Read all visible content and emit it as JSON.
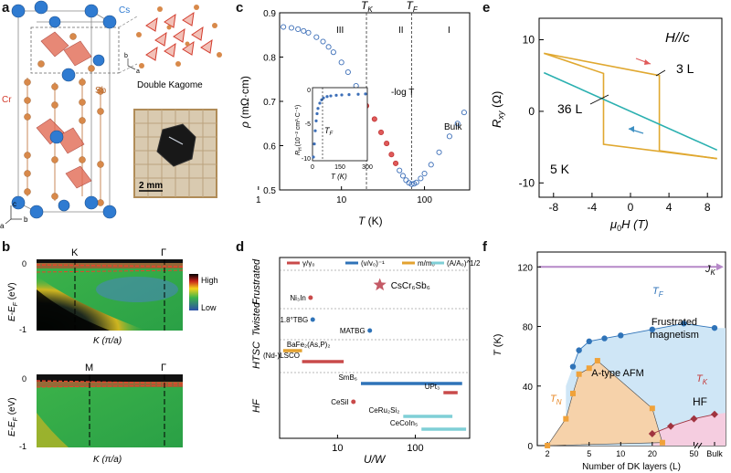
{
  "labels": {
    "a": "a",
    "b": "b",
    "c": "c",
    "d": "d",
    "e": "e",
    "f": "f"
  },
  "panel_a": {
    "atoms": [
      "Cs",
      "Cr",
      "Sb"
    ],
    "caption": "Double Kagome",
    "scale": "2 mm",
    "axes": {
      "a": "a",
      "b": "b",
      "c": "c"
    },
    "colors": {
      "cs": "#2f7bd1",
      "cr": "#d33b2c",
      "sb": "#d8894a"
    }
  },
  "panel_b": {
    "top": {
      "ylabel": "E-E",
      "ysub": "F",
      "yunit": " (eV)",
      "xlabel": "K (π/a)",
      "k_markers": [
        "K",
        "Γ"
      ],
      "yticks": [
        "0",
        "-1"
      ]
    },
    "bottom": {
      "ylabel": "E-E",
      "ysub": "F",
      "yunit": " (eV)",
      "xlabel": "K (π/a)",
      "k_markers": [
        "M",
        "Γ"
      ],
      "yticks": [
        "0",
        "-1"
      ]
    },
    "colorbar": {
      "high": "High",
      "low": "Low"
    }
  },
  "panel_c": {
    "ylabel_pre": "ρ",
    "ylabel_unit": "(mΩ·cm)",
    "xlabel": "T (K)",
    "marker_TK": "T",
    "marker_TK_sub": "K",
    "marker_TF": "T",
    "marker_TF_sub": "F",
    "regions": [
      "III",
      "II",
      "I"
    ],
    "annot_log": "-log T",
    "annot_bulk": "Bulk",
    "inset": {
      "ylabel": "R",
      "ylabel_sub": "H",
      "ylabel_unit": "(10⁻² cm³·C⁻¹)",
      "xlabel": "T (K)",
      "marker": "T",
      "marker_sub": "F",
      "xticks": [
        "0",
        "150",
        "300"
      ],
      "yticks": [
        "0",
        "-5",
        "-10"
      ]
    },
    "chart_data": {
      "type": "scatter",
      "x_scale": "log",
      "xlim": [
        1.8,
        350
      ],
      "ylim": [
        0.5,
        0.9
      ],
      "xticks": [
        "1",
        "10",
        "100"
      ],
      "yticks": [
        "0.5",
        "0.6",
        "0.7",
        "0.8",
        "0.9"
      ],
      "T_K": 20,
      "T_F": 70,
      "series": [
        {
          "x": [
            2,
            2.5,
            3,
            3.5,
            4,
            5,
            6,
            7,
            8,
            10,
            12,
            15,
            18,
            20,
            25,
            30,
            35,
            40,
            45,
            50,
            55,
            60,
            65,
            70,
            75,
            80,
            90,
            100,
            120,
            150,
            200,
            250,
            300
          ],
          "y": [
            0.868,
            0.866,
            0.863,
            0.859,
            0.855,
            0.845,
            0.835,
            0.823,
            0.811,
            0.788,
            0.766,
            0.735,
            0.705,
            0.69,
            0.66,
            0.63,
            0.605,
            0.58,
            0.56,
            0.544,
            0.532,
            0.522,
            0.516,
            0.513,
            0.514,
            0.517,
            0.526,
            0.537,
            0.557,
            0.585,
            0.621,
            0.65,
            0.675
          ]
        }
      ]
    }
  },
  "panel_d": {
    "legend": [
      "γ/γ₀",
      "(v/v₀)⁻¹",
      "m/m₀",
      "(A/A₀)^1/2"
    ],
    "legend_colors": [
      "#c94a4a",
      "#2f73b8",
      "#e3a230",
      "#7fcfd6"
    ],
    "groups": [
      "Frustrated",
      "Twisted",
      "HTSC",
      "HF"
    ],
    "xlabel": "U/W",
    "xticks": [
      "10",
      "100"
    ],
    "star_label": "CsCr₆Sb₆",
    "chart_data": {
      "type": "bar",
      "x_scale": "log",
      "xlim": [
        1.8,
        500
      ],
      "entries": [
        {
          "name": "CsCr₆Sb₆",
          "kind": "star",
          "x": 35
        },
        {
          "name": "Ni₃In",
          "kind": "point",
          "x": 4.5
        },
        {
          "name": "1.8°TBG",
          "kind": "point",
          "x": 4.8
        },
        {
          "name": "MATBG",
          "kind": "point",
          "x": 26
        },
        {
          "name": "BaFe₂(As,P)₂",
          "kind": "range",
          "x": [
            2,
            3.5
          ]
        },
        {
          "name": "(Nd-)LSCO",
          "kind": "range",
          "x": [
            3.5,
            12
          ]
        },
        {
          "name": "SmB₆",
          "kind": "range",
          "x": [
            20,
            400
          ]
        },
        {
          "name": "UPt₃",
          "kind": "range",
          "x": [
            230,
            350
          ]
        },
        {
          "name": "CeSiI",
          "kind": "point",
          "x": 16
        },
        {
          "name": "CeRu₂Si₂",
          "kind": "range",
          "x": [
            70,
            300
          ]
        },
        {
          "name": "CeCoIn₅",
          "kind": "range",
          "x": [
            120,
            450
          ]
        }
      ]
    }
  },
  "panel_e": {
    "title": "H//c",
    "ylabel": "R",
    "ylabel_sub": "xy",
    "ylabel_unit": " (Ω)",
    "xlabel_pre": "μ",
    "xlabel_sub": "0",
    "xlabel_post": "H (T)",
    "temp": "5 K",
    "labels": [
      "3 L",
      "36 L"
    ],
    "chart_data": {
      "type": "line",
      "xlim": [
        -9.5,
        9.5
      ],
      "ylim": [
        -12,
        13
      ],
      "xticks": [
        "-8",
        "-4",
        "0",
        "4",
        "8"
      ],
      "yticks": [
        "-10",
        "0",
        "10"
      ],
      "series": [
        {
          "name": "3 L",
          "up": [
            [
              -9,
              8.1
            ],
            [
              3,
              5
            ],
            [
              3,
              -5.5
            ],
            [
              9,
              -6.6
            ]
          ],
          "down": [
            [
              9,
              -6.6
            ],
            [
              -2.8,
              -4.6
            ],
            [
              -2.8,
              5.3
            ],
            [
              -9,
              8.1
            ]
          ]
        },
        {
          "name": "36 L",
          "values": [
            [
              -9,
              5.4
            ],
            [
              9,
              -5.4
            ]
          ]
        }
      ]
    }
  },
  "panel_f": {
    "ylabel": "T (K)",
    "xlabel": "Number of DK layers (L)",
    "xticks": [
      "2",
      "5",
      "10",
      "20",
      "50",
      "Bulk"
    ],
    "yticks": [
      "0",
      "40",
      "80",
      "120"
    ],
    "JK": "J",
    "JK_sub": "K",
    "TF": "T",
    "TF_sub": "F",
    "TN": "T",
    "TN_sub": "N",
    "TK": "T",
    "TK_sub": "K",
    "regions": [
      "A-type AFM",
      "Frustrated magnetism",
      "HF"
    ],
    "chart_data": {
      "type": "scatter",
      "x_scale": "log",
      "ylim": [
        0,
        130
      ],
      "series": [
        {
          "name": "T_F",
          "x": [
            3.5,
            4,
            5,
            7,
            10,
            20,
            40,
            "Bulk"
          ],
          "y": [
            53,
            64,
            70,
            72,
            74,
            78,
            82,
            79
          ]
        },
        {
          "name": "T_N",
          "x": [
            2,
            3,
            3.5,
            4,
            5,
            6,
            20,
            25
          ],
          "y": [
            0,
            18,
            35,
            48,
            52,
            57,
            25,
            2
          ]
        },
        {
          "name": "T_K",
          "x": [
            20,
            30,
            50,
            "Bulk"
          ],
          "y": [
            8,
            13,
            18,
            21
          ]
        }
      ]
    }
  }
}
